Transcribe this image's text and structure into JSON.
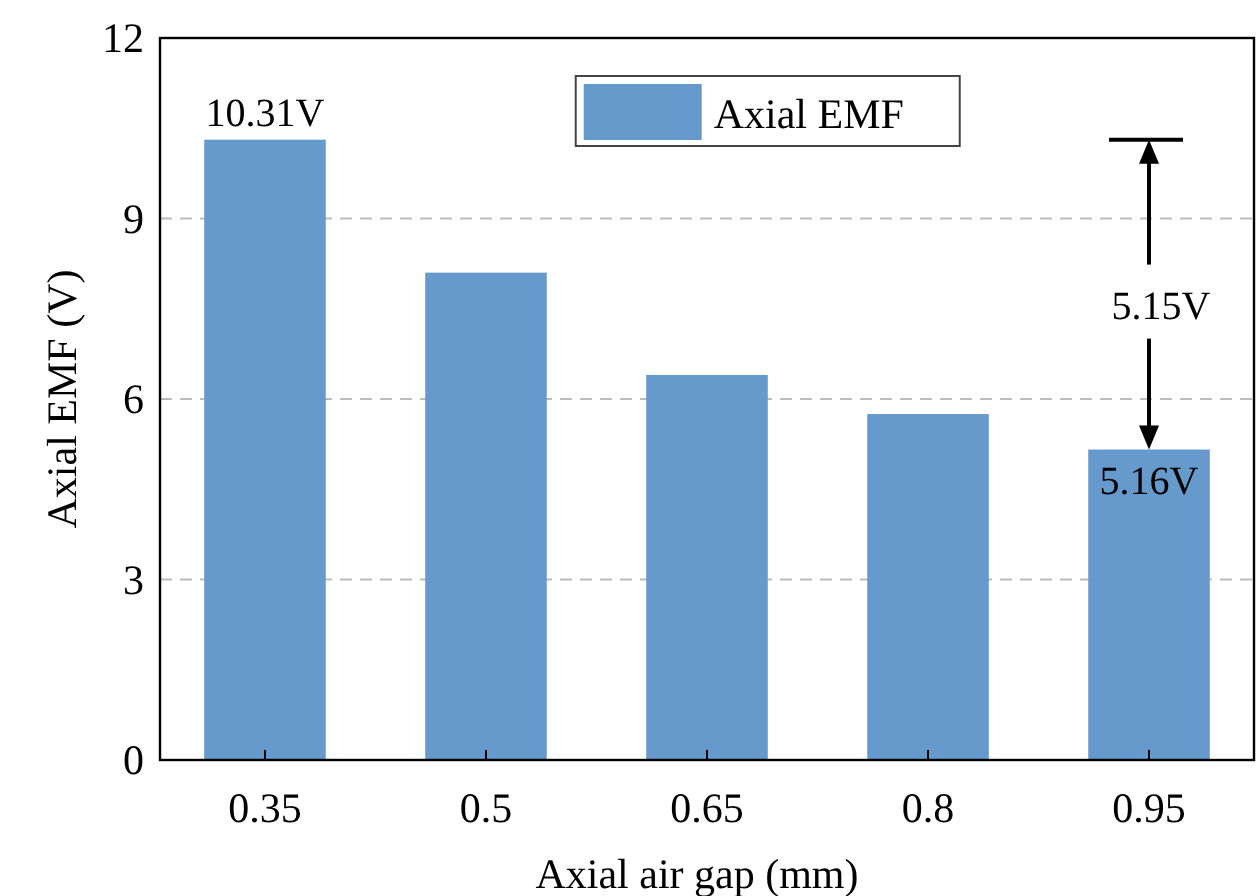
{
  "chart_data": {
    "type": "bar",
    "xlabel": "Axial air gap (mm)",
    "ylabel": "Axial EMF (V)",
    "categories": [
      "0.35",
      "0.5",
      "0.65",
      "0.8",
      "0.95"
    ],
    "series": [
      {
        "name": "Axial EMF",
        "color": "#6699cc",
        "values": [
          10.31,
          8.1,
          6.4,
          5.75,
          5.16
        ],
        "value_labels": [
          "10.31V",
          null,
          null,
          null,
          "5.16V"
        ]
      }
    ],
    "ylim": [
      0,
      12
    ],
    "yticks": [
      0,
      3,
      6,
      9,
      12
    ],
    "grid": "y",
    "legend": "top",
    "annotations": [
      "5.15V"
    ]
  }
}
